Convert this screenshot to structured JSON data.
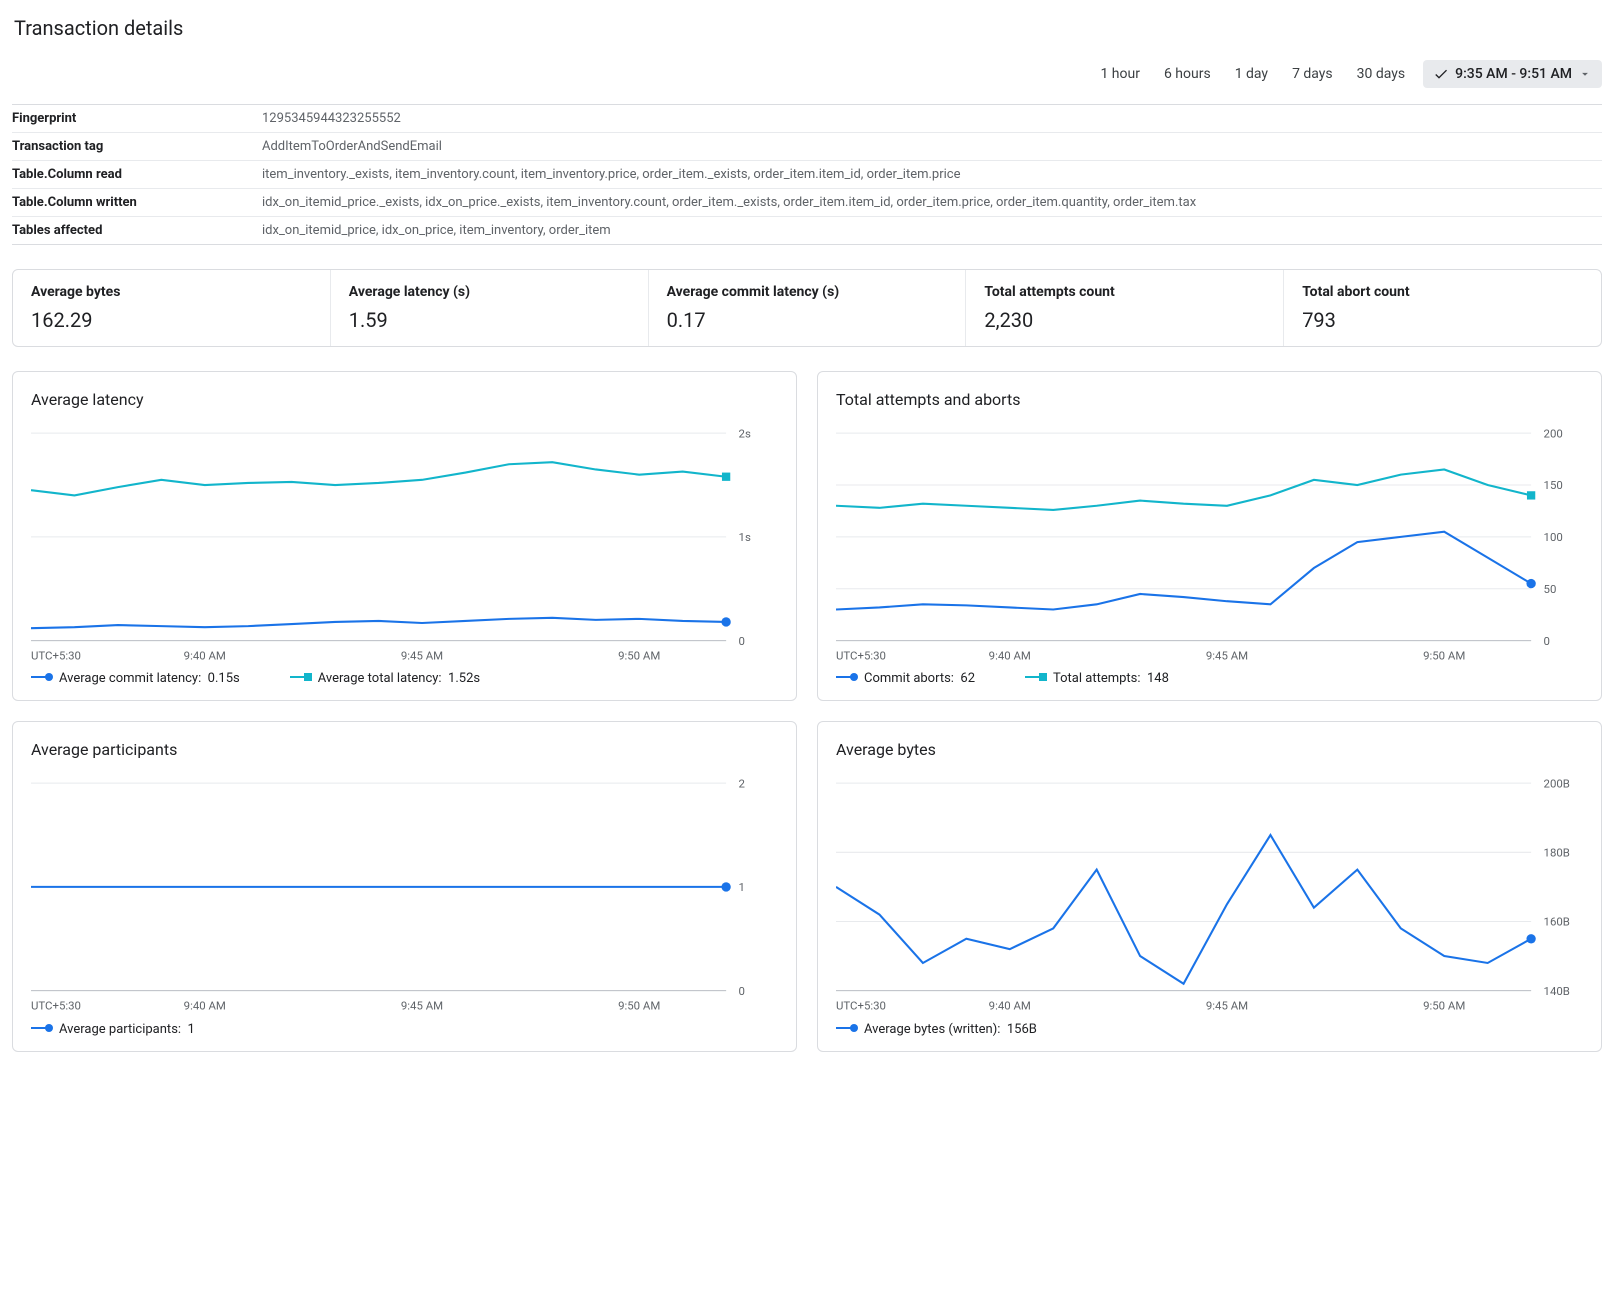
{
  "page_title": "Transaction details",
  "colors": {
    "blue": "#1a73e8",
    "teal": "#12b5cb",
    "grid": "#e8eaed",
    "axis": "#bdc1c6",
    "text_muted": "#5f6368"
  },
  "timerange": {
    "options": [
      "1 hour",
      "6 hours",
      "1 day",
      "7 days",
      "30 days"
    ],
    "custom": "9:35 AM - 9:51 AM"
  },
  "details": [
    {
      "label": "Fingerprint",
      "value": "1295345944323255552"
    },
    {
      "label": "Transaction tag",
      "value": "AddItemToOrderAndSendEmail"
    },
    {
      "label": "Table.Column read",
      "value": "item_inventory._exists, item_inventory.count, item_inventory.price, order_item._exists, order_item.item_id, order_item.price"
    },
    {
      "label": "Table.Column written",
      "value": "idx_on_itemid_price._exists, idx_on_price._exists, item_inventory.count, order_item._exists, order_item.item_id, order_item.price, order_item.quantity, order_item.tax"
    },
    {
      "label": "Tables affected",
      "value": "idx_on_itemid_price, idx_on_price, item_inventory, order_item"
    }
  ],
  "stats": [
    {
      "label": "Average bytes",
      "value": "162.29"
    },
    {
      "label": "Average latency (s)",
      "value": "1.59"
    },
    {
      "label": "Average commit latency (s)",
      "value": "0.17"
    },
    {
      "label": "Total attempts count",
      "value": "2,230"
    },
    {
      "label": "Total abort count",
      "value": "793"
    }
  ],
  "x_axis": {
    "tz_label": "UTC+5:30",
    "ticks": [
      "9:40 AM",
      "9:45 AM",
      "9:50 AM"
    ],
    "n_points": 17
  },
  "charts": {
    "latency": {
      "title": "Average latency",
      "ylim": [
        0,
        2
      ],
      "yticks": [
        "0",
        "1s",
        "2s"
      ],
      "series": [
        {
          "name": "Average commit latency",
          "value_label": "0.15s",
          "color": "#1a73e8",
          "marker": "circle",
          "data": [
            0.12,
            0.13,
            0.15,
            0.14,
            0.13,
            0.14,
            0.16,
            0.18,
            0.19,
            0.17,
            0.19,
            0.21,
            0.22,
            0.2,
            0.21,
            0.19,
            0.18
          ]
        },
        {
          "name": "Average total latency",
          "value_label": "1.52s",
          "color": "#12b5cb",
          "marker": "square",
          "data": [
            1.45,
            1.4,
            1.48,
            1.55,
            1.5,
            1.52,
            1.53,
            1.5,
            1.52,
            1.55,
            1.62,
            1.7,
            1.72,
            1.65,
            1.6,
            1.63,
            1.58
          ]
        }
      ]
    },
    "attempts": {
      "title": "Total attempts and aborts",
      "ylim": [
        0,
        200
      ],
      "yticks": [
        "0",
        "50",
        "100",
        "150",
        "200"
      ],
      "series": [
        {
          "name": "Commit aborts",
          "value_label": "62",
          "color": "#1a73e8",
          "marker": "circle",
          "data": [
            30,
            32,
            35,
            34,
            32,
            30,
            35,
            45,
            42,
            38,
            35,
            70,
            95,
            100,
            105,
            80,
            55
          ]
        },
        {
          "name": "Total attempts",
          "value_label": "148",
          "color": "#12b5cb",
          "marker": "square",
          "data": [
            130,
            128,
            132,
            130,
            128,
            126,
            130,
            135,
            132,
            130,
            140,
            155,
            150,
            160,
            165,
            150,
            140
          ]
        }
      ]
    },
    "participants": {
      "title": "Average participants",
      "ylim": [
        0,
        2
      ],
      "yticks": [
        "0",
        "1",
        "2"
      ],
      "series": [
        {
          "name": "Average participants",
          "value_label": "1",
          "color": "#1a73e8",
          "marker": "circle",
          "data": [
            1,
            1,
            1,
            1,
            1,
            1,
            1,
            1,
            1,
            1,
            1,
            1,
            1,
            1,
            1,
            1,
            1
          ]
        }
      ]
    },
    "bytes": {
      "title": "Average bytes",
      "ylim": [
        140,
        200
      ],
      "yticks": [
        "140B",
        "160B",
        "180B",
        "200B"
      ],
      "series": [
        {
          "name": "Average bytes (written)",
          "value_label": "156B",
          "color": "#1a73e8",
          "marker": "circle",
          "data": [
            170,
            162,
            148,
            155,
            152,
            158,
            175,
            150,
            142,
            165,
            185,
            164,
            175,
            158,
            150,
            148,
            155
          ]
        }
      ]
    }
  }
}
